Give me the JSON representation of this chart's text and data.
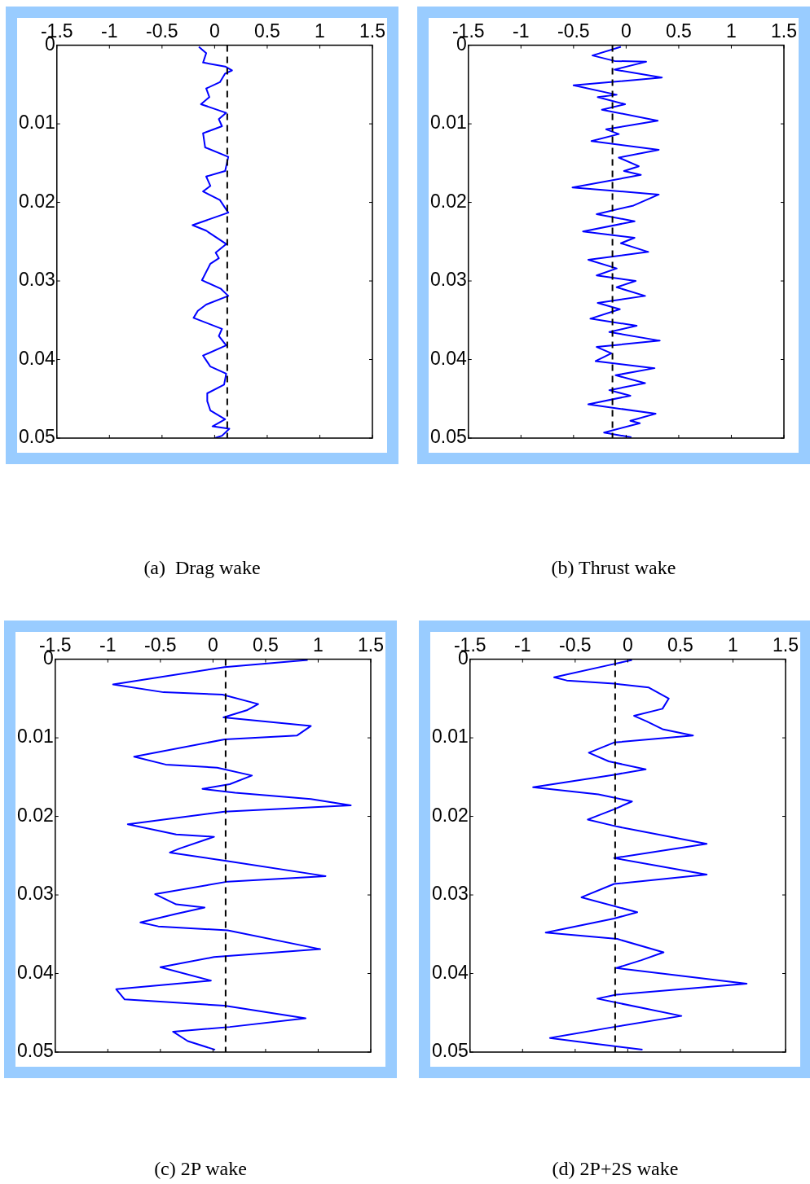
{
  "chart_data": [
    {
      "type": "line",
      "title": "(a)  Drag wake",
      "xlim": [
        -1.5,
        1.5
      ],
      "xticks": [
        -1.5,
        -1,
        -0.5,
        0,
        0.5,
        1,
        1.5
      ],
      "ylim": [
        0.05,
        0
      ],
      "yticks": [
        0,
        0.01,
        0.02,
        0.03,
        0.04,
        0.05
      ],
      "grid": false,
      "legend": false,
      "marker": "none",
      "line_style": "solid",
      "ref_lines": [
        {
          "axis": "x",
          "value": 0.12,
          "color": "#000000",
          "line_style": "dashed"
        }
      ],
      "series": [
        {
          "color": "#0000ff",
          "x": [
            -0.15,
            -0.08,
            -0.11,
            0.1,
            0.165,
            0.1,
            0.05,
            -0.08,
            -0.05,
            -0.13,
            0.11,
            0.04,
            0.07,
            -0.11,
            -0.09,
            0.13,
            0.1,
            -0.08,
            -0.04,
            -0.11,
            0.05,
            0.13,
            -0.21,
            -0.08,
            0.11,
            0.01,
            0.04,
            -0.04,
            -0.12,
            0.06,
            0.13,
            -0.08,
            -0.16,
            -0.2,
            0.07,
            0.04,
            0.11,
            -0.11,
            -0.04,
            0.11,
            0.09,
            -0.07,
            -0.07,
            -0.04,
            0.1,
            -0.02,
            0.14,
            0.07,
            0
          ],
          "values": [
            0.0002,
            0.001,
            0.0022,
            0.0027,
            0.0032,
            0.0036,
            0.0047,
            0.0055,
            0.0066,
            0.0075,
            0.0086,
            0.0094,
            0.0103,
            0.0112,
            0.013,
            0.0142,
            0.016,
            0.0167,
            0.0179,
            0.0186,
            0.0197,
            0.0213,
            0.0229,
            0.0236,
            0.0253,
            0.0264,
            0.0271,
            0.0278,
            0.0299,
            0.031,
            0.0319,
            0.033,
            0.0338,
            0.0347,
            0.0361,
            0.037,
            0.0382,
            0.0395,
            0.0409,
            0.0418,
            0.0432,
            0.0443,
            0.0453,
            0.0465,
            0.0476,
            0.0485,
            0.0488,
            0.0497,
            0.05
          ]
        }
      ]
    },
    {
      "type": "line",
      "title": "(b) Thrust wake",
      "xlim": [
        -1.5,
        1.5
      ],
      "xticks": [
        -1.5,
        -1,
        -0.5,
        0,
        0.5,
        1,
        1.5
      ],
      "ylim": [
        0.05,
        0
      ],
      "yticks": [
        0,
        0.01,
        0.02,
        0.03,
        0.04,
        0.05
      ],
      "grid": false,
      "legend": false,
      "marker": "none",
      "line_style": "solid",
      "ref_lines": [
        {
          "axis": "x",
          "value": -0.13,
          "color": "#000000",
          "line_style": "dashed"
        }
      ],
      "series": [
        {
          "color": "#0000ff",
          "x": [
            -0.05,
            -0.32,
            -0.11,
            0.19,
            -0.11,
            0.34,
            -0.5,
            -0.09,
            -0.27,
            -0.01,
            -0.23,
            0.3,
            -0.19,
            -0.07,
            -0.33,
            0.31,
            -0.07,
            0.12,
            -0.02,
            0.14,
            -0.51,
            0.31,
            0.07,
            -0.28,
            0.08,
            -0.41,
            0.08,
            -0.05,
            0.21,
            -0.36,
            -0.09,
            -0.28,
            0.09,
            -0.09,
            0.18,
            -0.27,
            -0.06,
            -0.34,
            0.1,
            -0.16,
            0.32,
            -0.28,
            -0.14,
            -0.29,
            0.27,
            -0.1,
            0.18,
            -0.16,
            0.04,
            -0.36,
            0.28,
            0.04,
            0.13,
            -0.21,
            0.05
          ],
          "values": [
            0.0002,
            0.0013,
            0.002,
            0.0021,
            0.0031,
            0.0041,
            0.0051,
            0.0063,
            0.0066,
            0.0075,
            0.0082,
            0.0096,
            0.0107,
            0.0113,
            0.0122,
            0.0133,
            0.0143,
            0.0154,
            0.016,
            0.0165,
            0.0181,
            0.019,
            0.0204,
            0.0215,
            0.0224,
            0.0237,
            0.0245,
            0.0252,
            0.0263,
            0.0273,
            0.0284,
            0.0293,
            0.03,
            0.0308,
            0.0319,
            0.0328,
            0.0336,
            0.0348,
            0.0357,
            0.0365,
            0.0376,
            0.0384,
            0.0392,
            0.0402,
            0.0411,
            0.042,
            0.043,
            0.0439,
            0.0446,
            0.0457,
            0.0469,
            0.0478,
            0.0481,
            0.0493,
            0.0499
          ]
        }
      ]
    },
    {
      "type": "line",
      "title": "(c) 2P wake",
      "xlim": [
        -1.5,
        1.5
      ],
      "xticks": [
        -1.5,
        -1,
        -0.5,
        0,
        0.5,
        1,
        1.5
      ],
      "ylim": [
        0.05,
        0
      ],
      "yticks": [
        0,
        0.01,
        0.02,
        0.03,
        0.04,
        0.05
      ],
      "grid": false,
      "legend": false,
      "marker": "none",
      "line_style": "solid",
      "ref_lines": [
        {
          "axis": "x",
          "value": 0.12,
          "color": "#000000",
          "line_style": "dashed"
        }
      ],
      "series": [
        {
          "color": "#0000ff",
          "x": [
            0.9,
            0.11,
            -0.95,
            -0.47,
            0.09,
            0.43,
            0.32,
            0.1,
            0.93,
            0.8,
            0.11,
            -0.75,
            -0.45,
            0.04,
            0.37,
            0.16,
            -0.1,
            0.21,
            0.93,
            1.31,
            0.11,
            -0.81,
            -0.35,
            0.01,
            -0.32,
            -0.41,
            0.14,
            1.07,
            0.14,
            -0.55,
            -0.35,
            -0.08,
            -0.35,
            -0.69,
            -0.52,
            0.14,
            1.02,
            0.01,
            -0.5,
            -0.02,
            -0.92,
            -0.84,
            0.11,
            0.88,
            0.16,
            -0.38,
            -0.24,
            0.02
          ],
          "values": [
            0.0001,
            0.001,
            0.0032,
            0.0042,
            0.0045,
            0.0057,
            0.0065,
            0.0074,
            0.0085,
            0.0097,
            0.0102,
            0.0124,
            0.0134,
            0.0138,
            0.0148,
            0.0159,
            0.0165,
            0.017,
            0.0178,
            0.0186,
            0.0194,
            0.021,
            0.0223,
            0.0226,
            0.0241,
            0.0246,
            0.0257,
            0.0276,
            0.0283,
            0.0299,
            0.0312,
            0.0316,
            0.0324,
            0.0335,
            0.034,
            0.0345,
            0.0369,
            0.0379,
            0.0392,
            0.0409,
            0.042,
            0.0433,
            0.0441,
            0.0457,
            0.0468,
            0.0474,
            0.0486,
            0.0497
          ]
        }
      ]
    },
    {
      "type": "line",
      "title": "(d) 2P+2S wake",
      "xlim": [
        -1.5,
        1.5
      ],
      "xticks": [
        -1.5,
        -1,
        -0.5,
        0,
        0.5,
        1,
        1.5
      ],
      "ylim": [
        0.05,
        0
      ],
      "yticks": [
        0,
        0.01,
        0.02,
        0.03,
        0.04,
        0.05
      ],
      "grid": false,
      "legend": false,
      "marker": "none",
      "line_style": "solid",
      "ref_lines": [
        {
          "axis": "x",
          "value": -0.12,
          "color": "#000000",
          "line_style": "dashed"
        }
      ],
      "series": [
        {
          "color": "#0000ff",
          "x": [
            0.04,
            -0.13,
            -0.7,
            -0.58,
            -0.13,
            0.2,
            0.39,
            0.33,
            0.06,
            0.18,
            0.33,
            0.62,
            -0.13,
            -0.37,
            -0.18,
            0.17,
            -0.13,
            -0.9,
            -0.28,
            0.04,
            -0.13,
            -0.38,
            -0.1,
            0.75,
            -0.13,
            0.75,
            -0.13,
            -0.44,
            0.09,
            -0.13,
            -0.78,
            -0.1,
            0.34,
            0.13,
            -0.11,
            1.13,
            -0.11,
            -0.29,
            0.51,
            -0.13,
            -0.74,
            -0.33,
            0.14
          ],
          "values": [
            0.0001,
            0.0006,
            0.0023,
            0.0027,
            0.0031,
            0.0036,
            0.005,
            0.0063,
            0.0072,
            0.0079,
            0.0089,
            0.0097,
            0.0106,
            0.0119,
            0.013,
            0.014,
            0.0147,
            0.0163,
            0.0172,
            0.0181,
            0.0191,
            0.0204,
            0.0213,
            0.0235,
            0.0253,
            0.0274,
            0.0286,
            0.0303,
            0.0322,
            0.033,
            0.0348,
            0.0356,
            0.0373,
            0.0383,
            0.0393,
            0.0413,
            0.0427,
            0.0432,
            0.0454,
            0.0468,
            0.0482,
            0.0489,
            0.0497
          ]
        }
      ]
    }
  ]
}
